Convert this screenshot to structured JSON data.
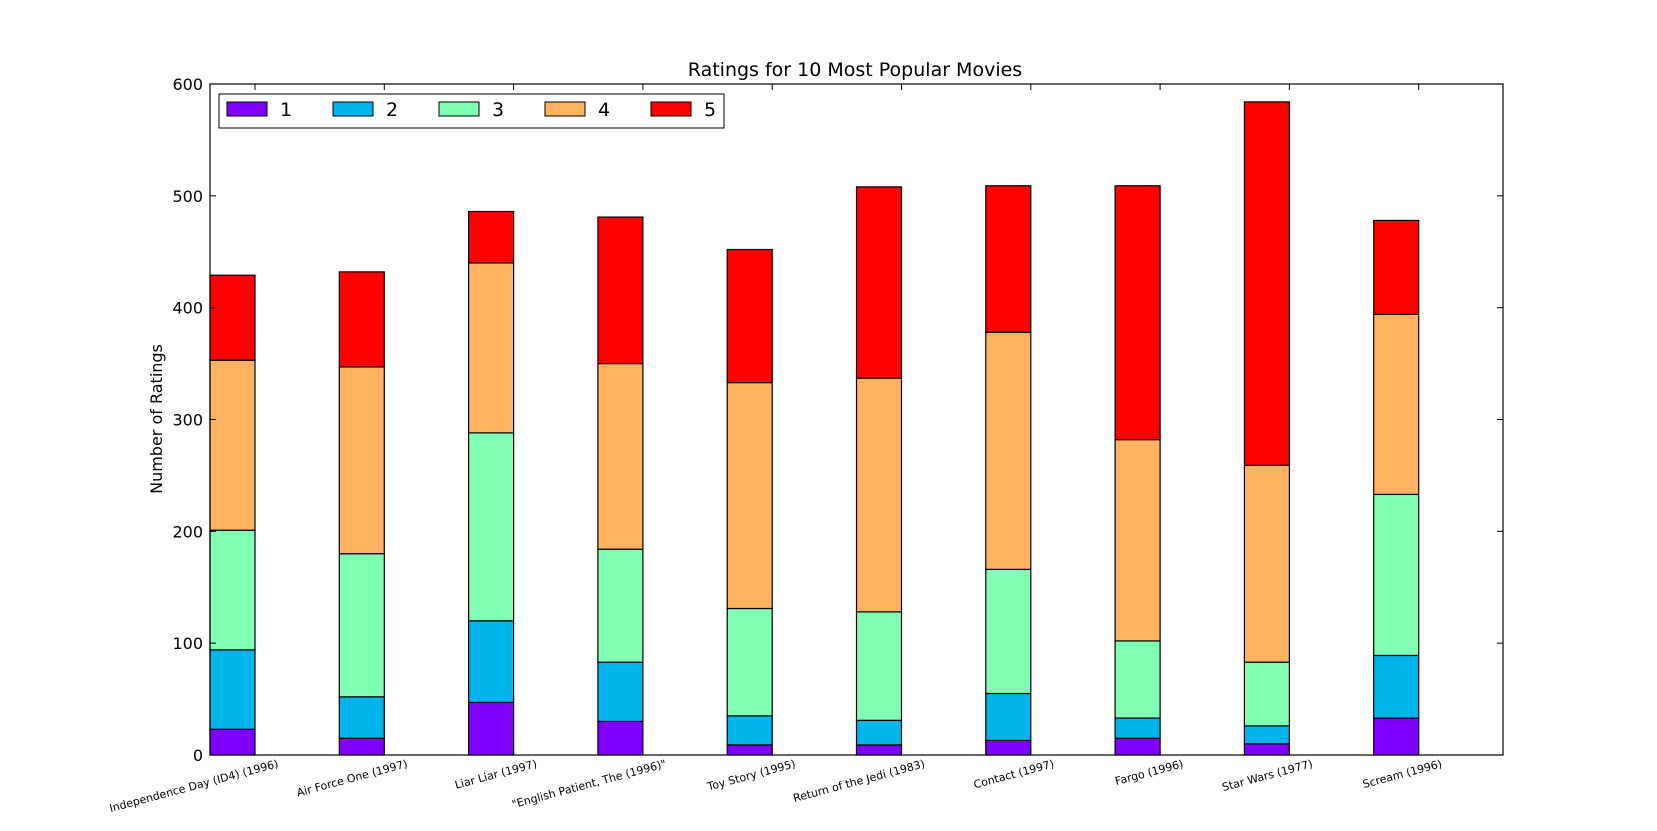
{
  "chart_data": {
    "type": "bar",
    "stacked": true,
    "title": "Ratings for 10 Most Popular Movies",
    "xlabel": "",
    "ylabel": "Number of Ratings",
    "ylim": [
      0,
      600
    ],
    "yticks": [
      0,
      100,
      200,
      300,
      400,
      500,
      600
    ],
    "grid": false,
    "legend_position": "top-left",
    "categories": [
      "Independence Day (ID4) (1996)",
      "Air Force One (1997)",
      "Liar Liar (1997)",
      "\"English Patient, The (1996)\"",
      "Toy Story (1995)",
      "Return of the Jedi (1983)",
      "Contact (1997)",
      "Fargo (1996)",
      "Star Wars (1977)",
      "Scream (1996)"
    ],
    "series": [
      {
        "name": "1",
        "color": "#8000ff",
        "values": [
          23,
          15,
          47,
          30,
          9,
          9,
          13,
          15,
          10,
          33
        ]
      },
      {
        "name": "2",
        "color": "#00b5eb",
        "values": [
          71,
          37,
          73,
          53,
          26,
          22,
          42,
          18,
          16,
          56
        ]
      },
      {
        "name": "3",
        "color": "#80ffb4",
        "values": [
          107,
          128,
          168,
          101,
          96,
          97,
          111,
          69,
          57,
          144
        ]
      },
      {
        "name": "4",
        "color": "#ffb360",
        "values": [
          152,
          167,
          152,
          166,
          202,
          209,
          212,
          180,
          176,
          161
        ]
      },
      {
        "name": "5",
        "color": "#ff0000",
        "values": [
          76,
          85,
          46,
          131,
          119,
          171,
          131,
          227,
          325,
          84
        ]
      }
    ]
  }
}
